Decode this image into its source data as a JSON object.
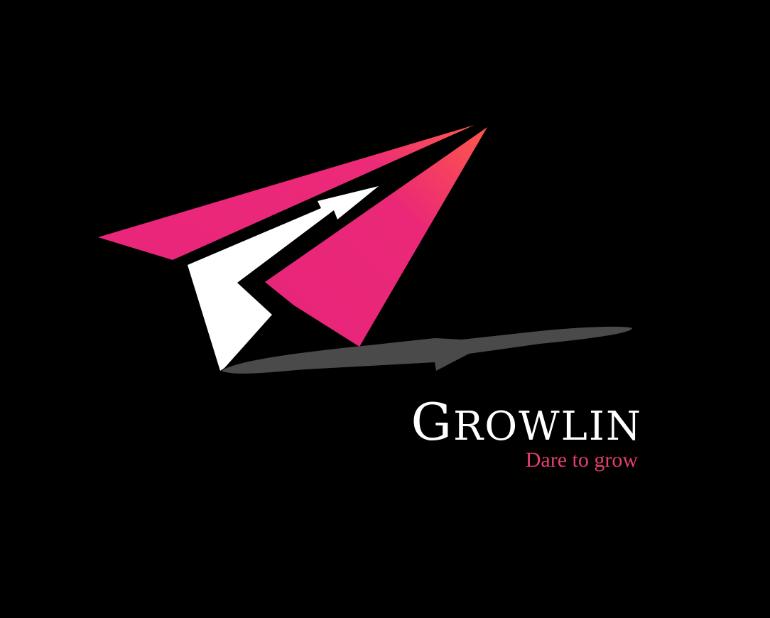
{
  "logo": {
    "icon": "paper-plane-growth-arrow-icon",
    "brand_name": "GROWLIN",
    "brand_first_letter": "G",
    "brand_rest": "ROWLIN",
    "tagline": "Dare to grow"
  },
  "colors": {
    "background": "#000000",
    "plane_pink": "#E8257A",
    "plane_orange": "#FF5A4A",
    "arrow_white": "#FFFFFF",
    "shadow_gray": "#4A4A4A",
    "brand_text": "#FFFFFF",
    "tagline_text": "#E63E6D"
  }
}
